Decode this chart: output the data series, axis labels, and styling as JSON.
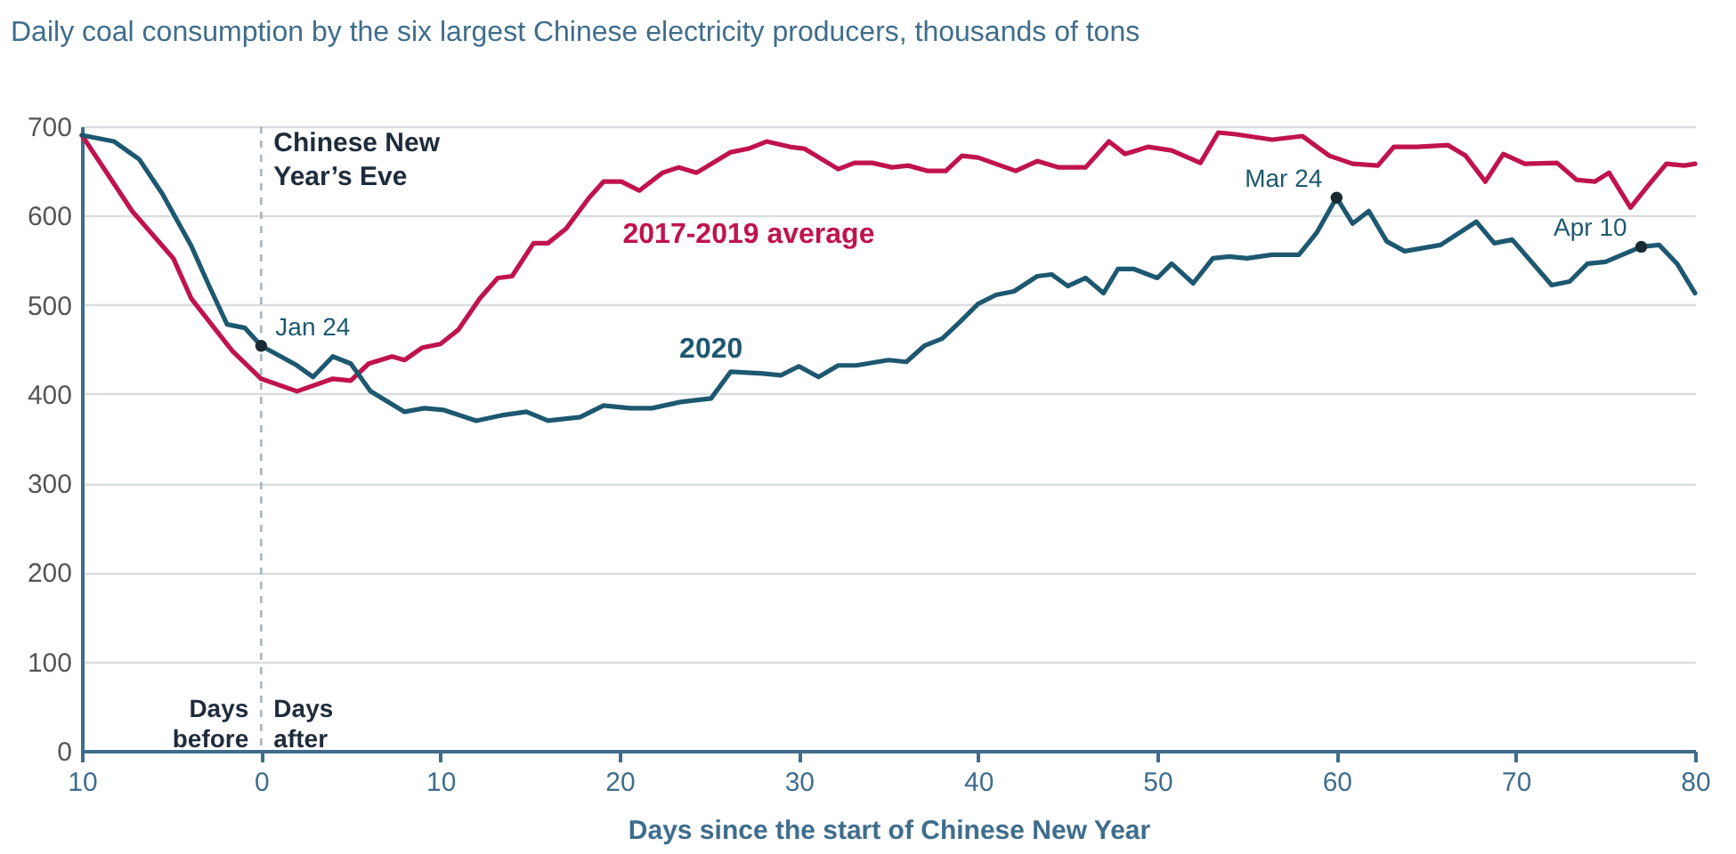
{
  "chart_data": {
    "type": "line",
    "title": "Daily coal consumption by the six largest Chinese electricity producers, thousands of tons",
    "xlabel": "Days since the start of Chinese New Year",
    "xlim": [
      -10,
      80
    ],
    "xticks": [
      {
        "value": -10,
        "label": "10"
      },
      0,
      10,
      20,
      30,
      40,
      50,
      60,
      70,
      80
    ],
    "ylim": [
      0,
      700
    ],
    "yticks": [
      0,
      100,
      200,
      300,
      400,
      500,
      600,
      700
    ],
    "grid": "y",
    "legend": false,
    "marker": "none",
    "line_style": "solid",
    "series": [
      {
        "name": "2017-2019 average",
        "color": "#c0134c",
        "x": [
          -10,
          -7.2,
          -4.9,
          -3.9,
          -1.6,
          0,
          2,
          4,
          5,
          6,
          7.3,
          8,
          9,
          10,
          11,
          12.2,
          13.2,
          14,
          15.2,
          16,
          17,
          18.3,
          19.1,
          20.1,
          21.1,
          22.4,
          23.3,
          24.3,
          26.2,
          27.2,
          28.2,
          29.5,
          30.3,
          32.2,
          33.1,
          34.1,
          35.2,
          36.1,
          37.2,
          38.2,
          39.1,
          40,
          42.1,
          43.3,
          44.5,
          46,
          47.3,
          48.2,
          49.5,
          50.8,
          52.4,
          53.4,
          54.4,
          56.4,
          58.1,
          59.6,
          60.9,
          62.3,
          63.2,
          64.5,
          66.2,
          67.2,
          68.3,
          69.3,
          70.5,
          72.3,
          73.4,
          74.4,
          75.2,
          76.4,
          77.4,
          78.4,
          79.4,
          80
        ],
        "values": [
          690,
          605,
          552,
          507,
          448,
          417,
          403,
          417,
          415,
          434,
          442,
          438,
          452,
          456,
          472,
          507,
          530,
          532,
          569,
          569,
          585,
          620,
          638,
          638,
          628,
          648,
          654,
          648,
          671,
          675,
          683,
          677,
          675,
          652,
          659,
          659,
          654,
          656,
          650,
          650,
          667,
          665,
          650,
          661,
          654,
          654,
          683,
          669,
          677,
          673,
          659,
          693,
          691,
          685,
          689,
          667,
          658,
          656,
          677,
          677,
          679,
          667,
          638,
          669,
          658,
          659,
          640,
          638,
          648,
          609,
          634,
          658,
          656,
          658
        ]
      },
      {
        "name": "2020",
        "color": "#1d5870",
        "x": [
          -10,
          -8.2,
          -6.8,
          -5.5,
          -3.9,
          -2.9,
          -1.9,
          -0.9,
          0,
          1.1,
          2,
          2.9,
          4,
          5,
          6.1,
          8,
          9.1,
          10.2,
          12,
          13.4,
          14.8,
          16,
          17.8,
          19.1,
          20.6,
          21.8,
          23.4,
          25.1,
          26.2,
          28,
          29,
          30,
          31.1,
          32.2,
          33.2,
          35,
          36,
          37,
          38,
          39,
          40,
          41,
          42,
          43.3,
          44.1,
          45,
          46,
          47,
          47.8,
          48.7,
          50,
          50.8,
          52,
          53.1,
          54,
          55,
          56.4,
          57.9,
          58.9,
          60,
          60.9,
          61.8,
          62.8,
          63.8,
          65.8,
          67.8,
          68.8,
          69.8,
          72,
          73,
          74,
          75,
          77,
          78,
          79,
          80
        ],
        "values": [
          690,
          683,
          663,
          624,
          566,
          521,
          478,
          474,
          454,
          442,
          432,
          419,
          442,
          434,
          403,
          380,
          384,
          382,
          370,
          376,
          380,
          370,
          374,
          387,
          384,
          384,
          391,
          395,
          425,
          423,
          421,
          431,
          419,
          432,
          432,
          438,
          436,
          454,
          462,
          481,
          501,
          511,
          515,
          532,
          534,
          521,
          530,
          513,
          540,
          540,
          530,
          546,
          524,
          552,
          554,
          552,
          556,
          556,
          581,
          620,
          591,
          605,
          571,
          560,
          567,
          593,
          569,
          573,
          522,
          526,
          546,
          548,
          565,
          567,
          546,
          513
        ]
      }
    ],
    "ref_lines": [
      {
        "axis": "x",
        "value": 0,
        "label": "Chinese New Year’s Eve",
        "color": "#a9b4bd",
        "line_style": "dashed"
      }
    ],
    "annotations": [
      "Days before",
      "Days after",
      {
        "text": "Jan 24",
        "x": 0,
        "y": 454
      },
      {
        "text": "Mar 24",
        "x": 60,
        "y": 620
      },
      {
        "text": "Apr 10",
        "x": 77,
        "y": 565
      }
    ]
  }
}
